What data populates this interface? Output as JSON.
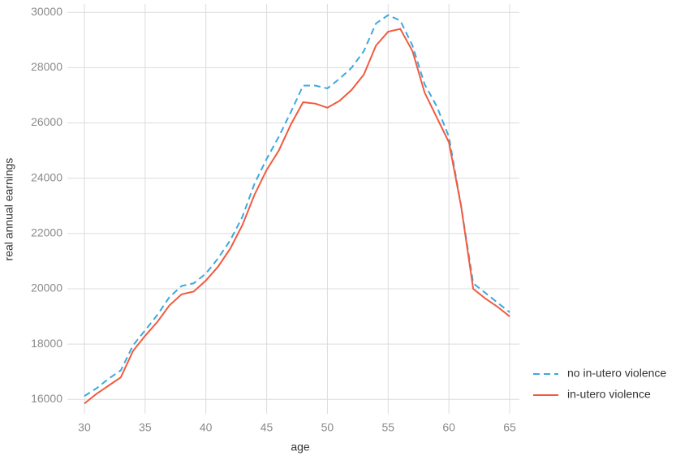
{
  "chart_data": {
    "type": "line",
    "x_label": "age",
    "y_label": "real annual earnings",
    "x": [
      30,
      31,
      32,
      33,
      34,
      35,
      36,
      37,
      38,
      39,
      40,
      41,
      42,
      43,
      44,
      45,
      46,
      47,
      48,
      49,
      50,
      51,
      52,
      53,
      54,
      55,
      56,
      57,
      58,
      59,
      60,
      61,
      62,
      63,
      64,
      65
    ],
    "series": [
      {
        "name": "no in-utero violence",
        "color": "#3aa9e0",
        "line_style": "dashed",
        "values": [
          16120,
          16400,
          16750,
          17050,
          17950,
          18500,
          19050,
          19700,
          20100,
          20200,
          20550,
          21100,
          21750,
          22600,
          23800,
          24700,
          25500,
          26400,
          27350,
          27350,
          27250,
          27600,
          28000,
          28600,
          29600,
          29900,
          29700,
          28800,
          27400,
          26600,
          25500,
          23000,
          20200,
          19850,
          19500,
          19150
        ]
      },
      {
        "name": "in-utero violence",
        "color": "#f15b40",
        "line_style": "solid",
        "values": [
          15850,
          16200,
          16500,
          16800,
          17750,
          18300,
          18800,
          19400,
          19800,
          19900,
          20300,
          20800,
          21450,
          22300,
          23400,
          24300,
          25000,
          25950,
          26750,
          26700,
          26550,
          26800,
          27200,
          27750,
          28800,
          29300,
          29400,
          28600,
          27100,
          26200,
          25300,
          23000,
          20000,
          19650,
          19350,
          19000
        ]
      }
    ],
    "xlim": [
      28.6,
      65.8
    ],
    "ylim": [
      15480,
      30300
    ],
    "xticks": [
      30,
      35,
      40,
      45,
      50,
      55,
      60,
      65
    ],
    "yticks": [
      16000,
      18000,
      20000,
      22000,
      24000,
      26000,
      28000,
      30000
    ],
    "grid": true,
    "legend": "right"
  }
}
